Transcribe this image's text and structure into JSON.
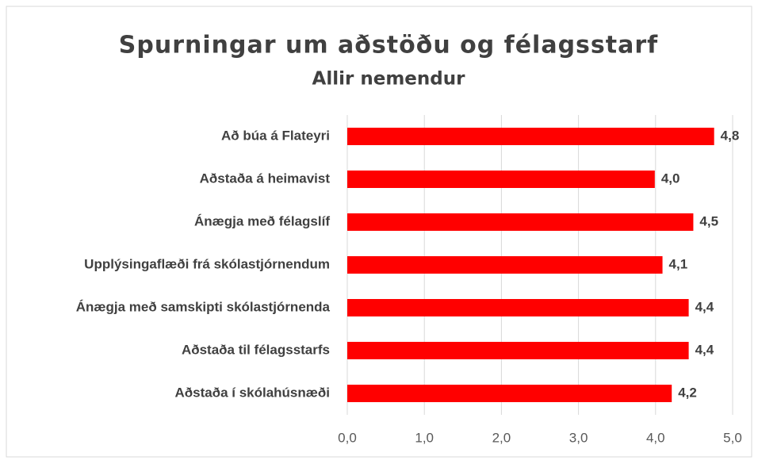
{
  "chart_data": {
    "type": "bar",
    "orientation": "horizontal",
    "title": "Spurningar um aðstöðu og félagsstarf",
    "subtitle": "Allir nemendur",
    "categories": [
      "Að búa á Flateyri",
      "Aðstaða á heimavist",
      "Ánægja með félagslíf",
      "Upplýsingaflæði frá skólastjórnendum",
      "Ánægja með samskipti skólastjórnenda",
      "Aðstaða til félagsstarfs",
      "Aðstaða í skólahúsnæði"
    ],
    "values": [
      4.76,
      3.99,
      4.49,
      4.09,
      4.43,
      4.43,
      4.21
    ],
    "value_labels": [
      "4,8",
      "4,0",
      "4,5",
      "4,1",
      "4,4",
      "4,4",
      "4,2"
    ],
    "color": "#ff0000",
    "xlim": [
      0,
      5
    ],
    "xticks": [
      {
        "value": 0,
        "label": "0,0"
      },
      {
        "value": 1,
        "label": "1,0"
      },
      {
        "value": 2,
        "label": "2,0"
      },
      {
        "value": 3,
        "label": "3,0"
      },
      {
        "value": 4,
        "label": "4,0"
      },
      {
        "value": 5,
        "label": "5,0"
      }
    ],
    "grid": true
  }
}
